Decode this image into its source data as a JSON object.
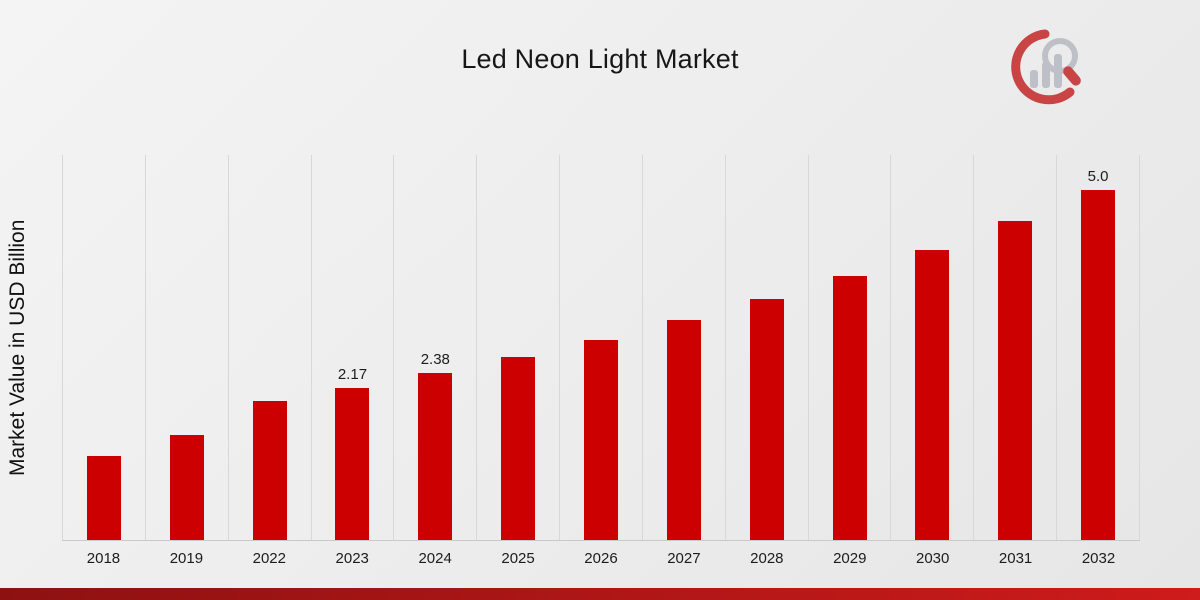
{
  "title": "Led Neon Light Market",
  "chart_data": {
    "type": "bar",
    "title": "Led Neon Light Market",
    "xlabel": "",
    "ylabel": "Market Value in USD Billion",
    "categories": [
      "2018",
      "2019",
      "2022",
      "2023",
      "2024",
      "2025",
      "2026",
      "2027",
      "2028",
      "2029",
      "2030",
      "2031",
      "2032"
    ],
    "values": [
      1.2,
      1.5,
      1.98,
      2.17,
      2.38,
      2.61,
      2.86,
      3.14,
      3.44,
      3.77,
      4.14,
      4.55,
      5.0
    ],
    "data_labels": [
      "",
      "",
      "",
      "2.17",
      "2.38",
      "",
      "",
      "",
      "",
      "",
      "",
      "",
      "5.0"
    ],
    "ylim": [
      0,
      5.5
    ],
    "grid": "vertical-gridlines",
    "legend": "none",
    "bar_color": "#CC0000"
  },
  "logo": {
    "name": "market-research-brand-logo",
    "icon": "bar-chart-with-magnifier-icon"
  },
  "colors": {
    "bar": "#CC0000",
    "bottom_strip_left": "#8E1111",
    "bottom_strip_right": "#CE1B1B",
    "background_top": "#F4F4F4",
    "background_bottom": "#E6E6E6",
    "gridline": "#D8D8D8",
    "logo_red": "#C63434",
    "logo_gray": "#B9BCC3"
  }
}
